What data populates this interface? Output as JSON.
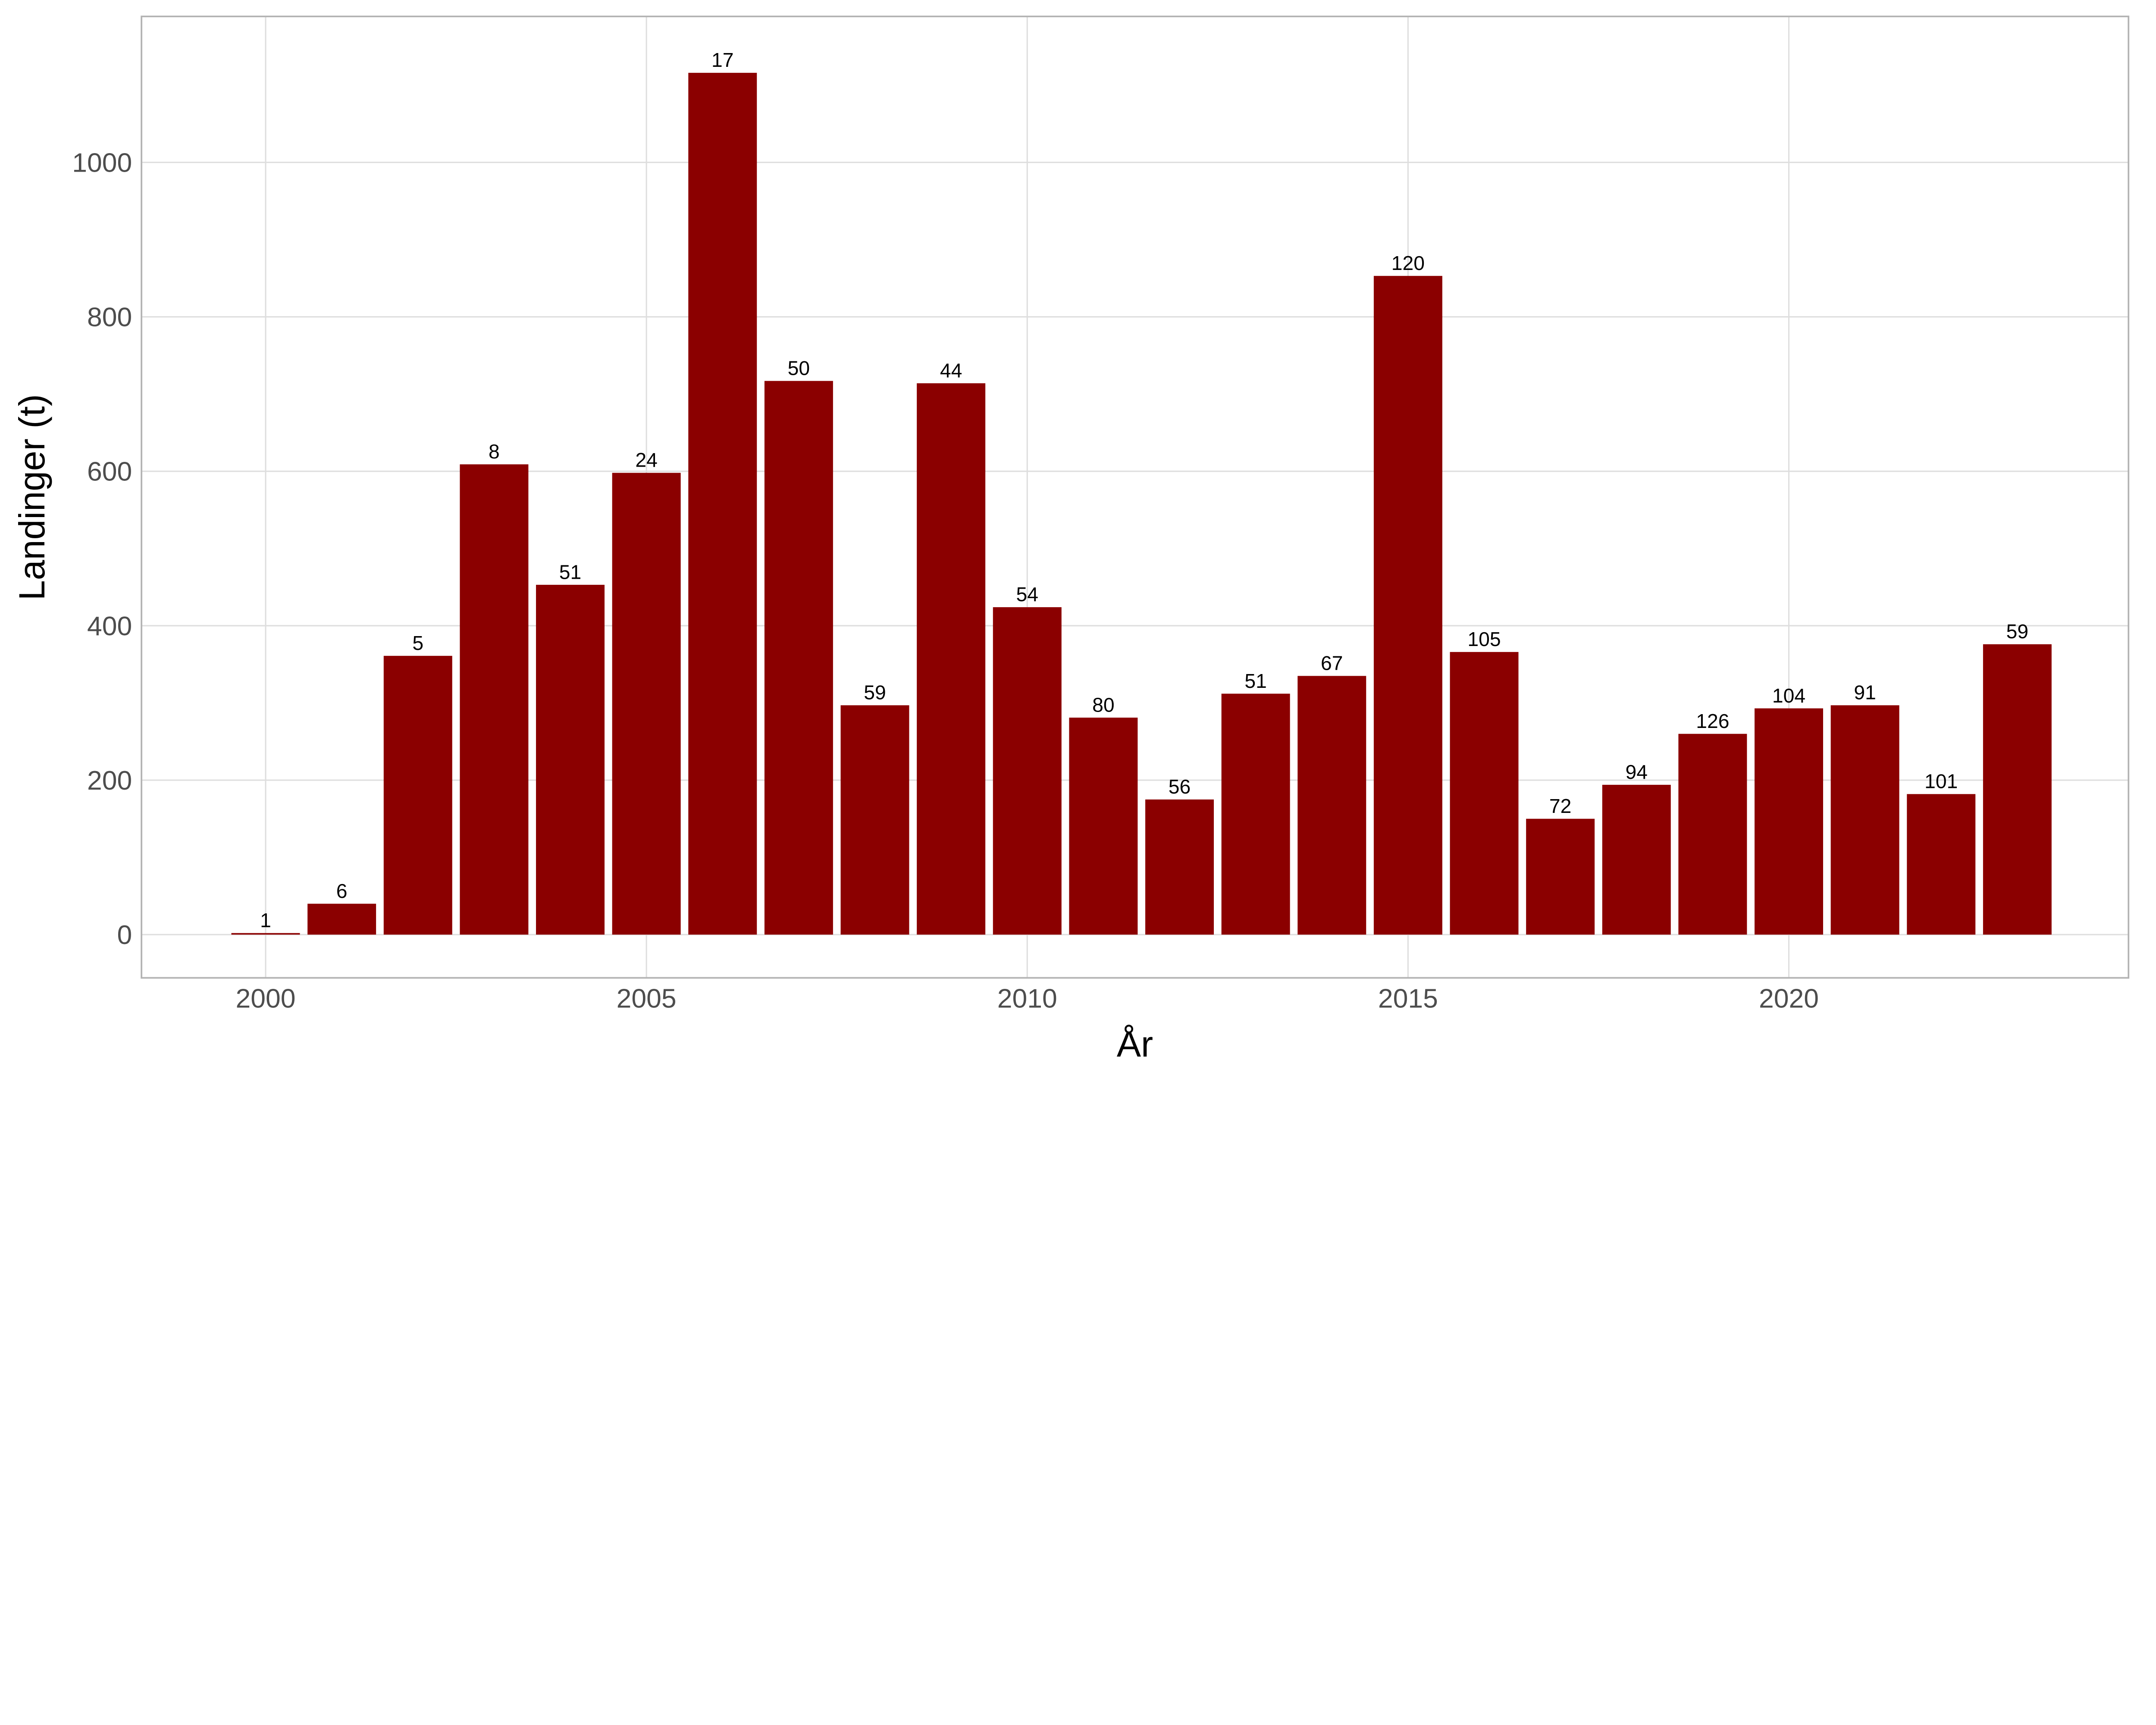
{
  "chart_data": {
    "type": "bar",
    "title": "",
    "xlabel": "År",
    "ylabel": "Landinger (t)",
    "x": [
      2000,
      2001,
      2002,
      2003,
      2004,
      2005,
      2006,
      2007,
      2008,
      2009,
      2010,
      2011,
      2012,
      2013,
      2014,
      2015,
      2016,
      2017,
      2018,
      2019,
      2020,
      2021,
      2022,
      2023
    ],
    "values": [
      2,
      40,
      361,
      609,
      453,
      598,
      1116,
      717,
      297,
      714,
      424,
      281,
      175,
      312,
      335,
      853,
      366,
      150,
      194,
      260,
      293,
      297,
      182,
      376
    ],
    "bar_labels": [
      "1",
      "6",
      "5",
      "8",
      "51",
      "24",
      "17",
      "50",
      "59",
      "44",
      "54",
      "80",
      "56",
      "51",
      "67",
      "120",
      "105",
      "72",
      "94",
      "126",
      "104",
      "91",
      "101",
      "59"
    ],
    "xticks": [
      2000,
      2005,
      2010,
      2015,
      2020
    ],
    "yticks": [
      0,
      200,
      400,
      600,
      800,
      1000
    ],
    "xlim": [
      1998.37,
      2024.46
    ],
    "ylim": [
      -56,
      1189
    ],
    "grid": true,
    "legend": "none",
    "bar_color": "#8B0000"
  }
}
